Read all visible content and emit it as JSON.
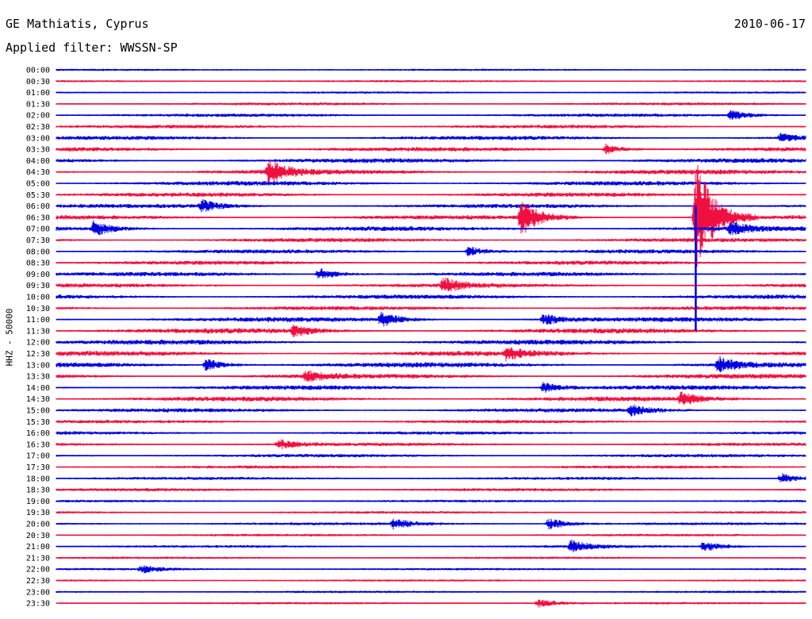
{
  "header": {
    "station": "GE Mathiatis, Cyprus",
    "filter_label": "Applied filter: WWSSN-SP",
    "date": "2010-06-17"
  },
  "channel_label": "HHZ - 50000",
  "colors": {
    "trace_a": "#0000e0",
    "trace_b": "#f01040"
  },
  "chart_data": {
    "type": "helicorder",
    "xlabel": "",
    "ylabel": "HHZ - 50000",
    "rows": [
      {
        "time": "00:00",
        "activity": 0.2
      },
      {
        "time": "00:30",
        "activity": 0.2
      },
      {
        "time": "01:00",
        "activity": 0.2
      },
      {
        "time": "01:30",
        "activity": 0.35
      },
      {
        "time": "02:00",
        "activity": 0.45
      },
      {
        "time": "02:30",
        "activity": 0.5
      },
      {
        "time": "03:00",
        "activity": 0.6
      },
      {
        "time": "03:30",
        "activity": 0.65
      },
      {
        "time": "04:00",
        "activity": 0.7
      },
      {
        "time": "04:30",
        "activity": 0.75
      },
      {
        "time": "05:00",
        "activity": 0.7
      },
      {
        "time": "05:30",
        "activity": 0.65
      },
      {
        "time": "06:00",
        "activity": 0.6
      },
      {
        "time": "06:30",
        "activity": 0.65
      },
      {
        "time": "07:00",
        "activity": 0.7
      },
      {
        "time": "07:30",
        "activity": 0.6
      },
      {
        "time": "08:00",
        "activity": 0.6
      },
      {
        "time": "08:30",
        "activity": 0.6
      },
      {
        "time": "09:00",
        "activity": 0.65
      },
      {
        "time": "09:30",
        "activity": 0.6
      },
      {
        "time": "10:00",
        "activity": 0.65
      },
      {
        "time": "10:30",
        "activity": 0.6
      },
      {
        "time": "11:00",
        "activity": 0.75
      },
      {
        "time": "11:30",
        "activity": 0.8
      },
      {
        "time": "12:00",
        "activity": 0.8
      },
      {
        "time": "12:30",
        "activity": 0.8
      },
      {
        "time": "13:00",
        "activity": 0.8
      },
      {
        "time": "13:30",
        "activity": 0.75
      },
      {
        "time": "14:00",
        "activity": 0.7
      },
      {
        "time": "14:30",
        "activity": 0.75
      },
      {
        "time": "15:00",
        "activity": 0.6
      },
      {
        "time": "15:30",
        "activity": 0.45
      },
      {
        "time": "16:00",
        "activity": 0.45
      },
      {
        "time": "16:30",
        "activity": 0.45
      },
      {
        "time": "17:00",
        "activity": 0.45
      },
      {
        "time": "17:30",
        "activity": 0.4
      },
      {
        "time": "18:00",
        "activity": 0.4
      },
      {
        "time": "18:30",
        "activity": 0.4
      },
      {
        "time": "19:00",
        "activity": 0.3
      },
      {
        "time": "19:30",
        "activity": 0.3
      },
      {
        "time": "20:00",
        "activity": 0.35
      },
      {
        "time": "20:30",
        "activity": 0.3
      },
      {
        "time": "21:00",
        "activity": 0.3
      },
      {
        "time": "21:30",
        "activity": 0.25
      },
      {
        "time": "22:00",
        "activity": 0.25
      },
      {
        "time": "22:30",
        "activity": 0.2
      },
      {
        "time": "23:00",
        "activity": 0.25
      },
      {
        "time": "23:30",
        "activity": 0.25
      }
    ],
    "events": [
      {
        "row": "02:00",
        "at_minute": 27,
        "magnitude": 0.5
      },
      {
        "row": "03:00",
        "at_minute": 29,
        "magnitude": 0.4
      },
      {
        "row": "03:30",
        "at_minute": 22,
        "magnitude": 0.5
      },
      {
        "row": "04:30",
        "at_minute": 8.5,
        "magnitude": 1.2
      },
      {
        "row": "06:00",
        "at_minute": 5.8,
        "magnitude": 0.6
      },
      {
        "row": "06:30",
        "at_minute": 18.6,
        "magnitude": 1.8
      },
      {
        "row": "06:30",
        "at_minute": 25.6,
        "magnitude": 6.0
      },
      {
        "row": "07:00",
        "at_minute": 1.5,
        "magnitude": 0.7
      },
      {
        "row": "07:00",
        "at_minute": 27,
        "magnitude": 0.6
      },
      {
        "row": "08:00",
        "at_minute": 16.5,
        "magnitude": 0.5
      },
      {
        "row": "09:00",
        "at_minute": 10.5,
        "magnitude": 0.6
      },
      {
        "row": "09:30",
        "at_minute": 15.5,
        "magnitude": 0.7
      },
      {
        "row": "11:00",
        "at_minute": 13,
        "magnitude": 0.7
      },
      {
        "row": "11:00",
        "at_minute": 19.5,
        "magnitude": 0.6
      },
      {
        "row": "11:30",
        "at_minute": 9.5,
        "magnitude": 0.5
      },
      {
        "row": "12:30",
        "at_minute": 18,
        "magnitude": 0.6
      },
      {
        "row": "13:00",
        "at_minute": 6,
        "magnitude": 0.6
      },
      {
        "row": "13:00",
        "at_minute": 26.5,
        "magnitude": 0.8
      },
      {
        "row": "13:30",
        "at_minute": 10,
        "magnitude": 0.5
      },
      {
        "row": "14:00",
        "at_minute": 19.5,
        "magnitude": 0.5
      },
      {
        "row": "14:30",
        "at_minute": 25,
        "magnitude": 0.6
      },
      {
        "row": "15:00",
        "at_minute": 23,
        "magnitude": 0.5
      },
      {
        "row": "16:30",
        "at_minute": 8.9,
        "magnitude": 0.5
      },
      {
        "row": "18:00",
        "at_minute": 29,
        "magnitude": 0.5
      },
      {
        "row": "20:00",
        "at_minute": 13.5,
        "magnitude": 0.5
      },
      {
        "row": "20:00",
        "at_minute": 19.7,
        "magnitude": 0.6
      },
      {
        "row": "21:00",
        "at_minute": 20.6,
        "magnitude": 0.6
      },
      {
        "row": "21:00",
        "at_minute": 25.9,
        "magnitude": 0.5
      },
      {
        "row": "22:00",
        "at_minute": 3.4,
        "magnitude": 0.4
      },
      {
        "row": "23:30",
        "at_minute": 19.3,
        "magnitude": 0.4
      }
    ],
    "grid": false,
    "legend": "none"
  }
}
